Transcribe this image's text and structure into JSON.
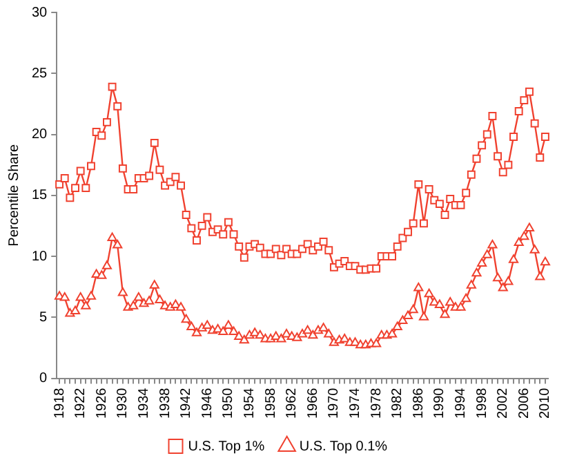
{
  "chart_data": {
    "type": "line",
    "ylabel": "Percentile Share",
    "categories": [
      "1918",
      null,
      null,
      null,
      "1922",
      null,
      null,
      null,
      "1926",
      null,
      null,
      null,
      "1930",
      null,
      null,
      null,
      "1934",
      null,
      null,
      null,
      "1938",
      null,
      null,
      null,
      "1942",
      null,
      null,
      null,
      "1946",
      null,
      null,
      null,
      "1950",
      null,
      null,
      null,
      "1954",
      null,
      null,
      null,
      "1958",
      null,
      null,
      null,
      "1962",
      null,
      null,
      null,
      "1966",
      null,
      null,
      null,
      "1970",
      null,
      null,
      null,
      "1974",
      null,
      null,
      null,
      "1978",
      null,
      null,
      null,
      "1982",
      null,
      null,
      null,
      "1986",
      null,
      null,
      null,
      "1990",
      null,
      null,
      null,
      "1994",
      null,
      null,
      null,
      "1998",
      null,
      null,
      null,
      "2002",
      null,
      null,
      null,
      "2006",
      null,
      null,
      null,
      "2010"
    ],
    "series": [
      {
        "name": "U.S. Top 1%",
        "color": "#f0412f",
        "marker": "square",
        "values": [
          15.9,
          16.4,
          14.8,
          15.6,
          17.0,
          15.6,
          17.4,
          20.2,
          19.9,
          21.0,
          23.9,
          22.3,
          17.2,
          15.5,
          15.5,
          16.4,
          16.4,
          16.6,
          19.3,
          17.1,
          15.8,
          16.1,
          16.5,
          15.8,
          13.4,
          12.3,
          11.3,
          12.5,
          13.2,
          12.0,
          12.2,
          11.8,
          12.8,
          11.8,
          10.8,
          9.9,
          10.8,
          11.0,
          10.7,
          10.2,
          10.2,
          10.6,
          10.1,
          10.6,
          10.2,
          10.2,
          10.6,
          11.0,
          10.5,
          10.8,
          11.2,
          10.5,
          9.1,
          9.4,
          9.6,
          9.2,
          9.2,
          8.9,
          8.9,
          9.0,
          9.0,
          10.0,
          10.0,
          10.0,
          10.8,
          11.5,
          12.0,
          12.7,
          15.9,
          12.7,
          15.5,
          14.6,
          14.3,
          13.4,
          14.7,
          14.2,
          14.2,
          15.2,
          16.7,
          18.0,
          19.1,
          20.0,
          21.5,
          18.2,
          16.9,
          17.5,
          19.8,
          21.9,
          22.8,
          23.5,
          20.9,
          18.1,
          19.8
        ]
      },
      {
        "name": "U.S. Top 0.1%",
        "color": "#f0412f",
        "marker": "triangle",
        "values": [
          6.7,
          6.6,
          5.3,
          5.5,
          6.6,
          5.9,
          6.7,
          8.5,
          8.4,
          9.2,
          11.5,
          10.9,
          7.0,
          5.8,
          5.9,
          6.6,
          6.1,
          6.3,
          7.6,
          6.4,
          5.9,
          5.8,
          6.0,
          5.8,
          4.8,
          4.2,
          3.7,
          4.1,
          4.3,
          3.9,
          4.0,
          3.8,
          4.3,
          3.8,
          3.4,
          3.1,
          3.5,
          3.7,
          3.5,
          3.2,
          3.2,
          3.4,
          3.2,
          3.6,
          3.4,
          3.3,
          3.6,
          3.9,
          3.5,
          3.9,
          4.1,
          3.6,
          2.9,
          3.1,
          3.2,
          2.9,
          2.9,
          2.7,
          2.7,
          2.8,
          2.8,
          3.5,
          3.5,
          3.6,
          4.2,
          4.7,
          5.1,
          5.6,
          7.4,
          5.0,
          6.9,
          6.2,
          6.0,
          5.2,
          6.2,
          5.8,
          5.8,
          6.5,
          7.6,
          8.6,
          9.4,
          10.1,
          10.9,
          8.2,
          7.4,
          7.9,
          9.7,
          11.1,
          11.6,
          12.3,
          10.5,
          8.3,
          9.5
        ]
      }
    ],
    "ylim": [
      0,
      30
    ],
    "yticks": [
      0,
      5,
      10,
      15,
      20,
      25,
      30
    ],
    "grid": false,
    "legend": "bottom",
    "line_style": "solid"
  }
}
